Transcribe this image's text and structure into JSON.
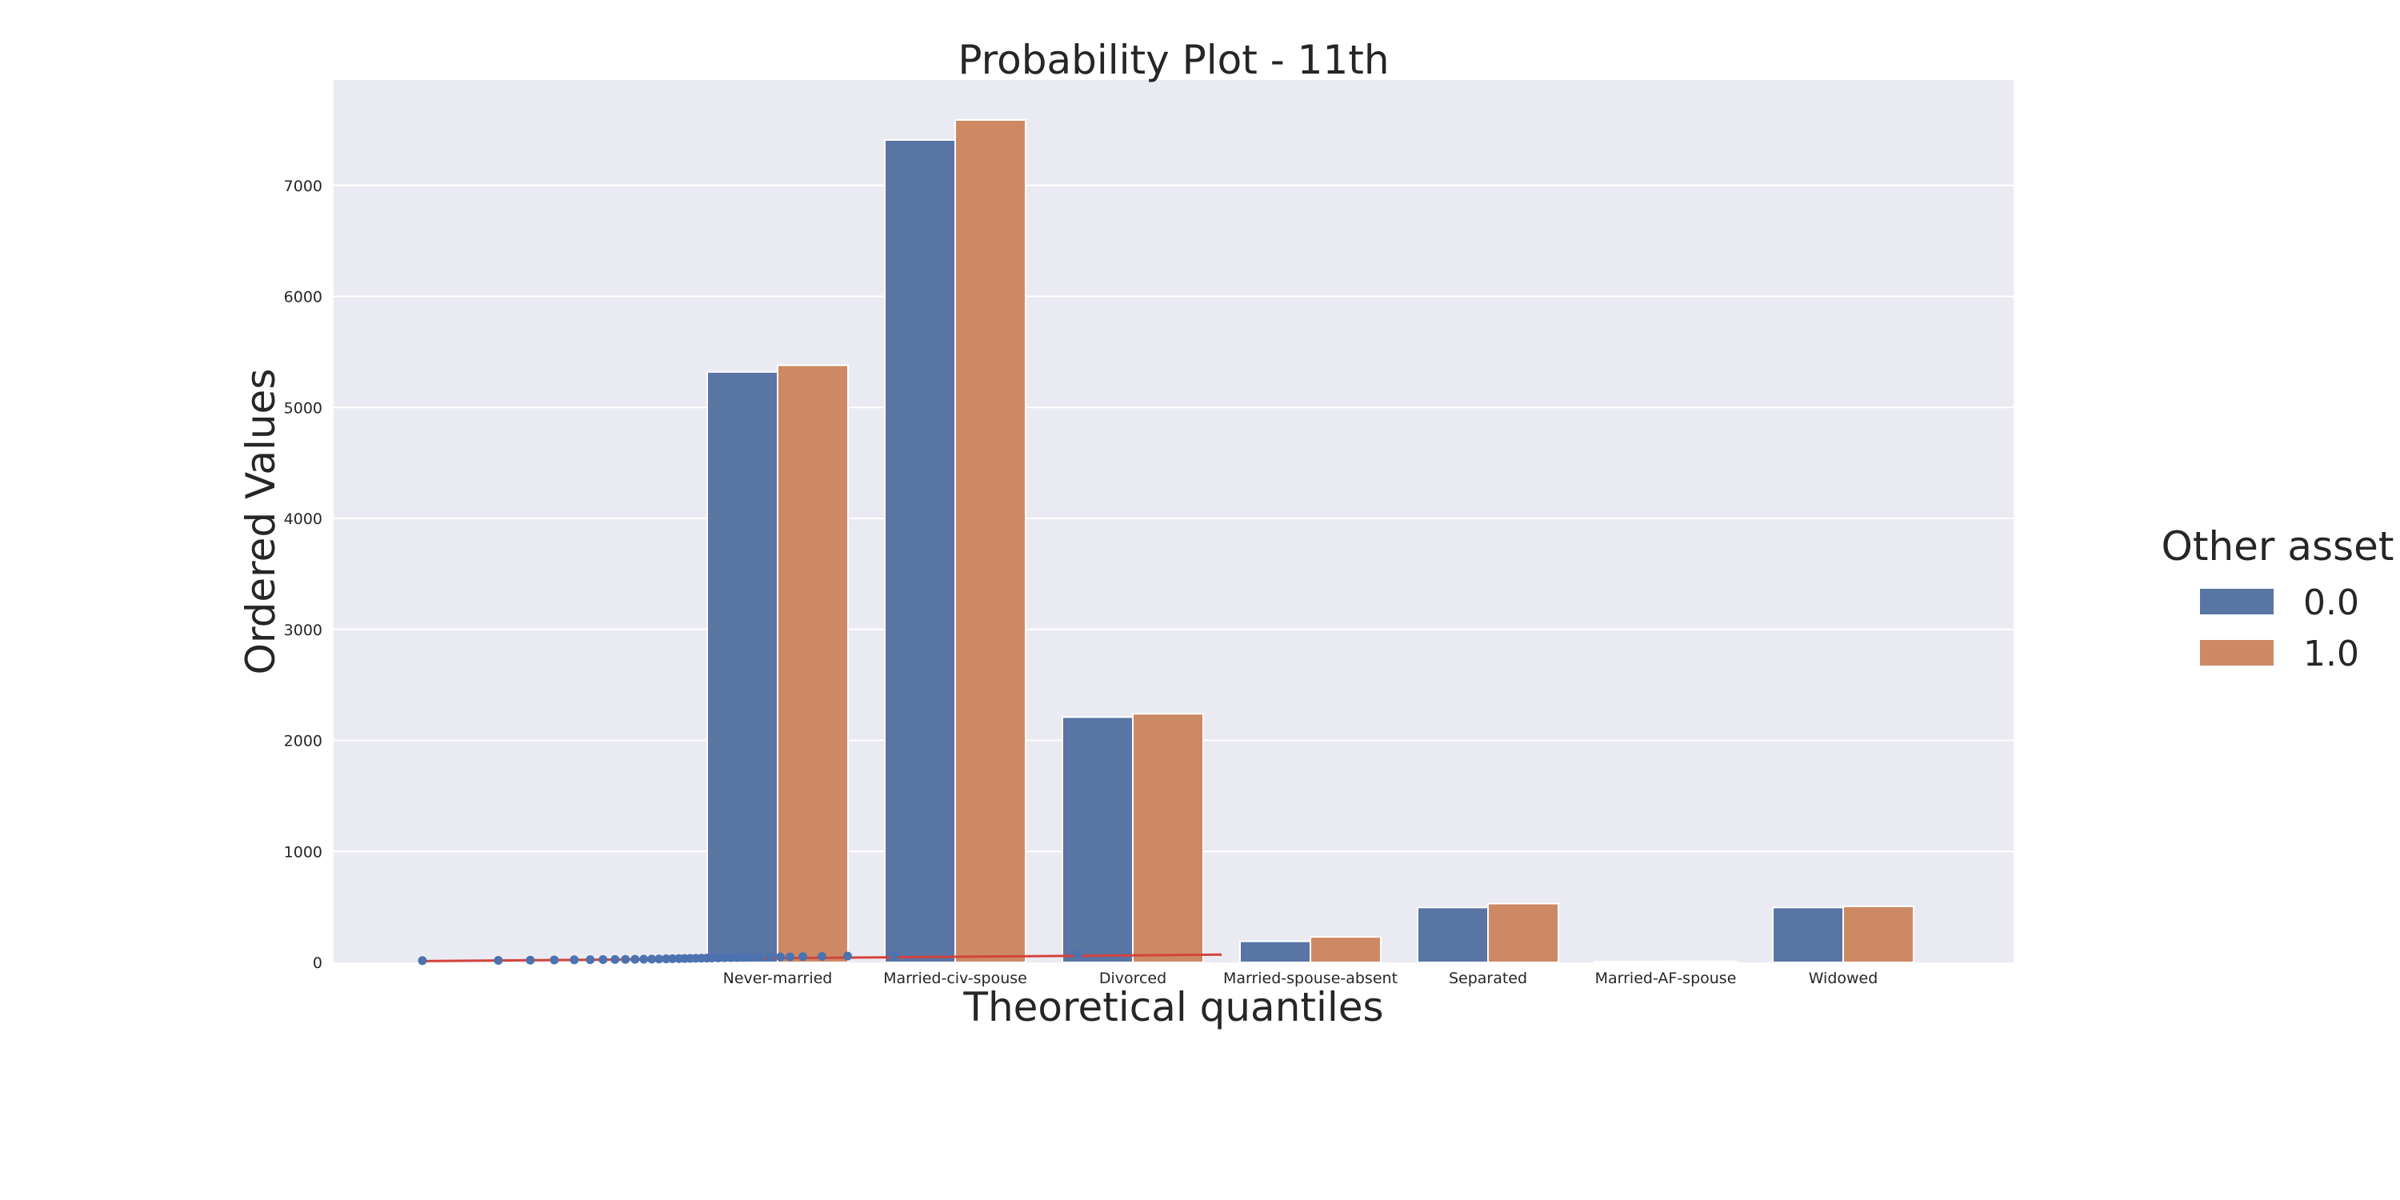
{
  "chart_data": {
    "type": "bar",
    "title": "Probability Plot - 11th",
    "xlabel": "Theoretical quantiles",
    "ylabel": "Ordered Values",
    "categories": [
      "Never-married",
      "Married-civ-spouse",
      "Divorced",
      "Married-spouse-absent",
      "Separated",
      "Married-AF-spouse",
      "Widowed"
    ],
    "category_slots": 9,
    "first_category_slot": 2,
    "ylim": [
      0,
      7950
    ],
    "yticks": [
      0,
      1000,
      2000,
      3000,
      4000,
      5000,
      6000,
      7000
    ],
    "grid": true,
    "series": [
      {
        "name": "0.0",
        "color": "#5975a4",
        "values": [
          5320,
          7410,
          2210,
          190,
          495,
          7,
          495
        ]
      },
      {
        "name": "1.0",
        "color": "#cc8963",
        "values": [
          5380,
          7590,
          2240,
          230,
          530,
          9,
          505
        ]
      }
    ],
    "legend": {
      "title": "Other asset",
      "placement": "right"
    },
    "probability_overlay": {
      "points_x": [
        0.0,
        0.095,
        0.135,
        0.165,
        0.19,
        0.21,
        0.226,
        0.241,
        0.254,
        0.266,
        0.277,
        0.287,
        0.296,
        0.305,
        0.313,
        0.321,
        0.328,
        0.335,
        0.342,
        0.349,
        0.356,
        0.362,
        0.37,
        0.378,
        0.386,
        0.394,
        0.402,
        0.412,
        0.422,
        0.435,
        0.448,
        0.46,
        0.476,
        0.5,
        0.532,
        0.59,
        0.82
      ],
      "points_y": [
        16,
        18,
        20,
        22,
        23,
        24,
        25,
        26,
        27,
        28,
        29,
        30,
        31,
        32,
        33,
        34,
        35,
        36,
        37,
        38,
        39,
        40,
        41,
        42,
        43,
        44,
        45,
        46,
        47,
        48,
        49,
        50,
        52,
        54,
        57,
        62,
        75
      ],
      "x_start_slot": 0,
      "x_end_slot": 4.5,
      "line_y": [
        12,
        70
      ],
      "point_color": "#4c72b0",
      "line_color": "#d3433d"
    }
  }
}
